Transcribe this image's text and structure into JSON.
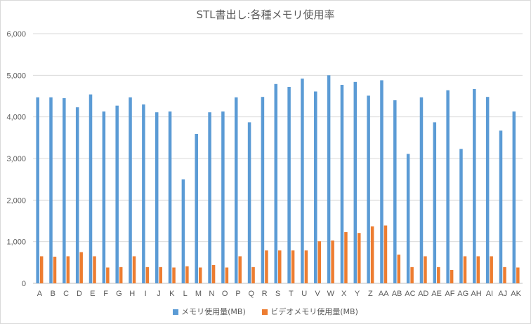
{
  "chart_data": {
    "type": "bar",
    "title": "STL書出し:各種メモリ使用率",
    "categories": [
      "A",
      "B",
      "C",
      "D",
      "E",
      "F",
      "G",
      "H",
      "I",
      "J",
      "K",
      "L",
      "M",
      "N",
      "O",
      "P",
      "Q",
      "R",
      "S",
      "T",
      "U",
      "V",
      "W",
      "X",
      "Y",
      "Z",
      "AA",
      "AB",
      "AC",
      "AD",
      "AE",
      "AF",
      "AG",
      "AH",
      "AI",
      "AJ",
      "AK"
    ],
    "series": [
      {
        "name": "メモリ使用量(MB)",
        "color": "#5b9bd5",
        "values": [
          4470,
          4470,
          4450,
          4230,
          4540,
          4130,
          4270,
          4470,
          4300,
          4110,
          4130,
          2500,
          3590,
          4110,
          4130,
          4470,
          3870,
          4480,
          4790,
          4720,
          4920,
          4610,
          5000,
          4770,
          4840,
          4510,
          4880,
          4400,
          3110,
          4470,
          3870,
          4640,
          3230,
          4670,
          4480,
          3670,
          4130
        ]
      },
      {
        "name": "ビデオメモリ使用量(MB)",
        "color": "#ed7d31",
        "values": [
          650,
          640,
          650,
          750,
          650,
          380,
          390,
          650,
          390,
          390,
          380,
          410,
          380,
          440,
          380,
          650,
          390,
          790,
          790,
          790,
          790,
          1010,
          1030,
          1230,
          1210,
          1370,
          1390,
          690,
          390,
          650,
          390,
          320,
          650,
          650,
          650,
          390,
          380
        ]
      }
    ],
    "ylim": [
      0,
      6000
    ],
    "yticks": [
      "0",
      "1,000",
      "2,000",
      "3,000",
      "4,000",
      "5,000",
      "6,000"
    ],
    "grid": true,
    "legend_position": "bottom"
  }
}
